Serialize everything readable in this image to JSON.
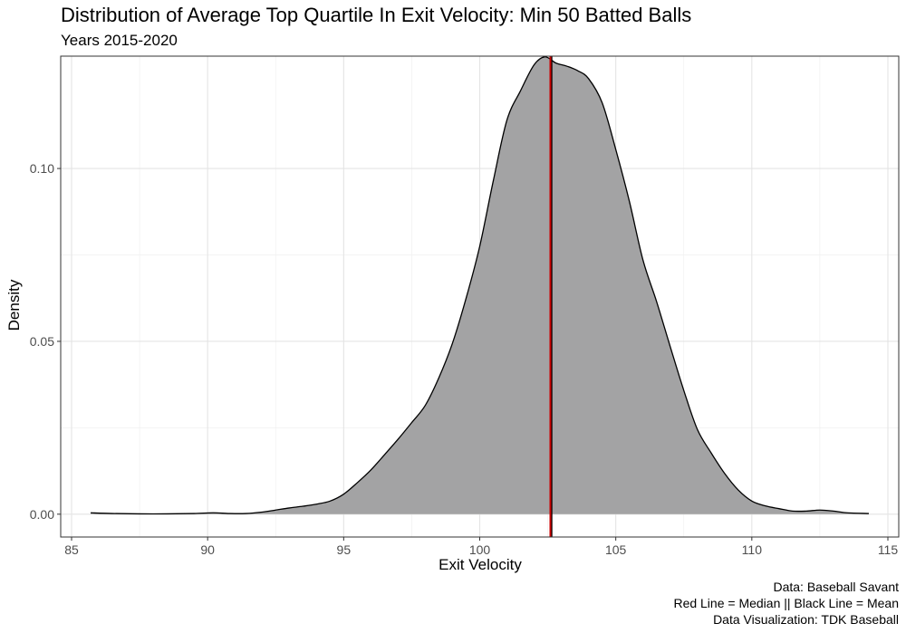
{
  "chart_data": {
    "type": "area",
    "title": "Distribution of Average Top Quartile In Exit Velocity: Min 50 Batted Balls",
    "subtitle": "Years 2015-2020",
    "xlabel": "Exit Velocity",
    "ylabel": "Density",
    "xlim": [
      84.6,
      115.4
    ],
    "ylim": [
      -0.0066,
      0.1325
    ],
    "x_ticks": [
      85,
      90,
      95,
      100,
      105,
      110,
      115
    ],
    "x_tick_labels": [
      "85",
      "90",
      "95",
      "100",
      "105",
      "110",
      "115"
    ],
    "y_ticks": [
      0.0,
      0.05,
      0.1
    ],
    "y_tick_labels": [
      "0.00",
      "0.05",
      "0.10"
    ],
    "grid": true,
    "fill_color": "#a3a3a4",
    "outline_color": "#000000",
    "median_line": {
      "x": 102.6,
      "color": "#cc0000"
    },
    "mean_line": {
      "x": 102.65,
      "color": "#000000"
    },
    "density": {
      "x": [
        85.7,
        86.5,
        87.5,
        88.5,
        89.5,
        90.2,
        90.8,
        91.4,
        92.0,
        92.5,
        93.0,
        93.5,
        94.0,
        94.5,
        95.0,
        95.5,
        96.0,
        96.5,
        97.0,
        97.5,
        98.0,
        98.5,
        99.0,
        99.5,
        100.0,
        100.5,
        101.0,
        101.5,
        102.0,
        102.4,
        102.8,
        103.2,
        103.6,
        104.0,
        104.5,
        105.0,
        105.5,
        106.0,
        106.5,
        107.0,
        107.5,
        108.0,
        108.5,
        109.0,
        109.5,
        110.0,
        110.5,
        111.0,
        111.5,
        112.0,
        112.5,
        113.0,
        113.5,
        114.3
      ],
      "y": [
        0.0004,
        0.0002,
        0.0001,
        0.0001,
        0.0002,
        0.0004,
        0.0002,
        0.0002,
        0.0006,
        0.0012,
        0.0018,
        0.0023,
        0.0029,
        0.0038,
        0.0058,
        0.0091,
        0.0128,
        0.0172,
        0.0217,
        0.0265,
        0.0315,
        0.0395,
        0.0495,
        0.0625,
        0.0775,
        0.0965,
        0.114,
        0.1225,
        0.13,
        0.1323,
        0.1305,
        0.1296,
        0.1283,
        0.126,
        0.119,
        0.1055,
        0.0905,
        0.0735,
        0.0615,
        0.0485,
        0.0358,
        0.0245,
        0.0178,
        0.0118,
        0.007,
        0.0038,
        0.0024,
        0.0016,
        0.0009,
        0.0009,
        0.0012,
        0.0009,
        0.0004,
        0.0002
      ]
    }
  },
  "captions": {
    "source": "Data: Baseball Savant",
    "legend_note": "Red Line = Median || Black Line = Mean",
    "credit": "Data Visualization: TDK Baseball"
  }
}
